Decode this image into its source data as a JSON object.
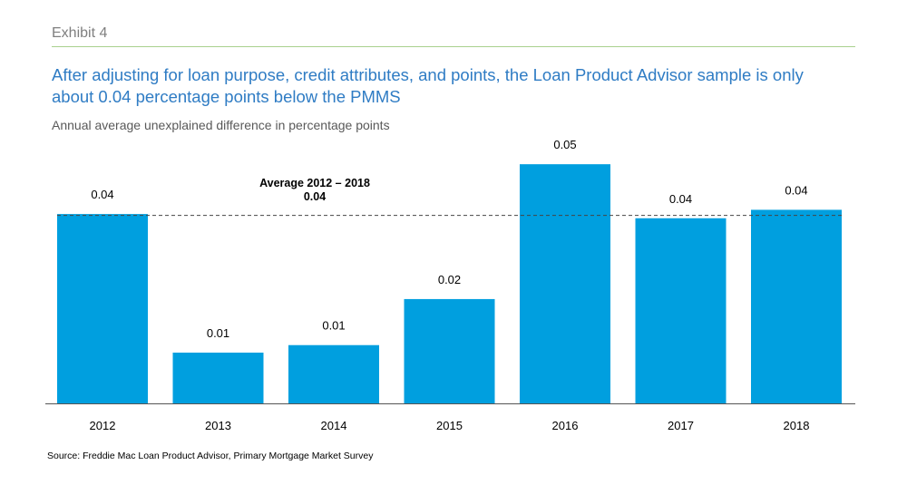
{
  "header": {
    "exhibit": "Exhibit 4",
    "title": "After adjusting for loan purpose, credit attributes, and points, the Loan Product Advisor sample is only about 0.04 percentage points below the PMMS",
    "subtitle": "Annual average unexplained difference in percentage points"
  },
  "source": "Source: Freddie Mac Loan Product Advisor, Primary Mortgage Market Survey",
  "colors": {
    "bar": "#009fdf",
    "rule": "#a9d18e",
    "title": "#2f7cc4"
  },
  "chart_data": {
    "type": "bar",
    "categories": [
      "2012",
      "2013",
      "2014",
      "2015",
      "2016",
      "2017",
      "2018"
    ],
    "values": [
      0.0403,
      0.0108,
      0.0124,
      0.0222,
      0.0509,
      0.0394,
      0.0412
    ],
    "data_labels": [
      "0.04",
      "0.01",
      "0.01",
      "0.02",
      "0.05",
      "0.04",
      "0.04"
    ],
    "ylim": [
      0,
      0.06
    ],
    "reference_line": {
      "value": 0.04,
      "label_line1": "Average 2012 – 2018",
      "label_line2": "0.04",
      "style": "dashed"
    },
    "grid": false,
    "xlabel": "",
    "ylabel": ""
  }
}
